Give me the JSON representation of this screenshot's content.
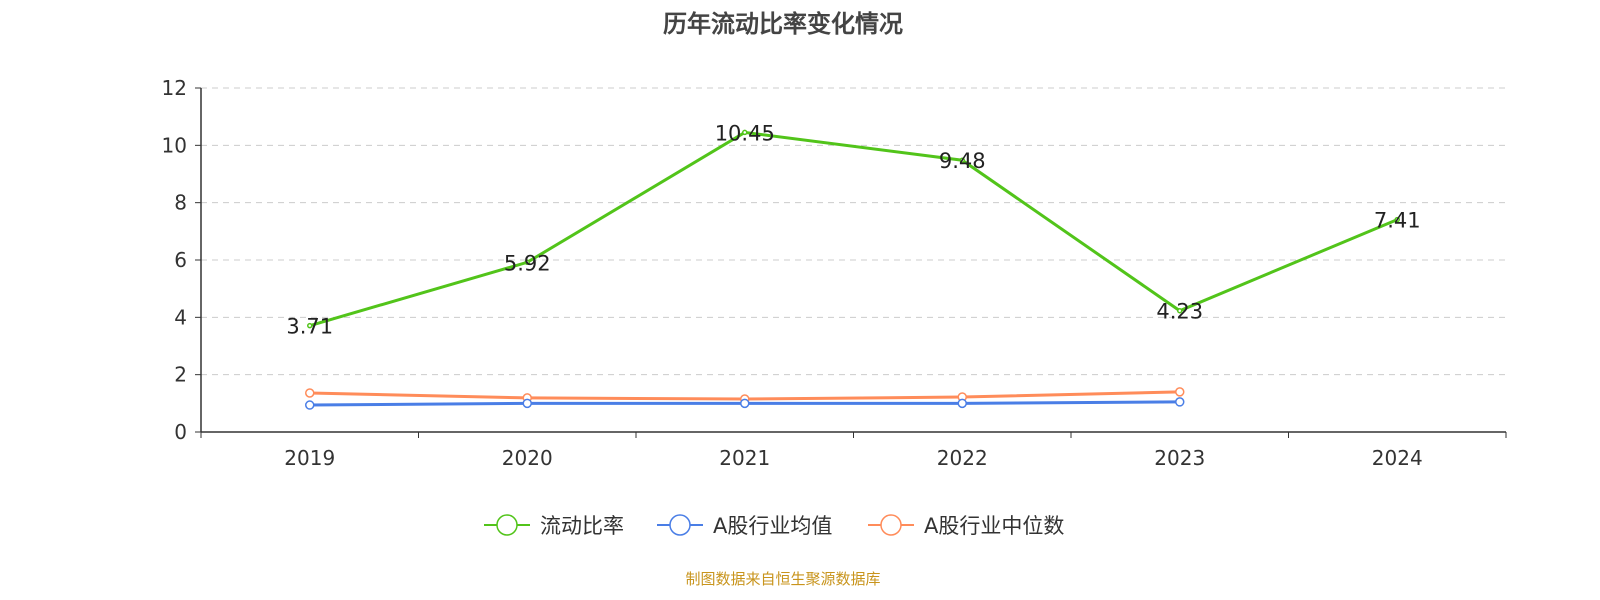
{
  "chart_data": {
    "type": "line",
    "title": "历年流动比率变化情况",
    "categories": [
      "2019",
      "2020",
      "2021",
      "2022",
      "2023",
      "2024"
    ],
    "ylim": [
      0,
      12
    ],
    "yticks": [
      0,
      2,
      4,
      6,
      8,
      10,
      12
    ],
    "grid": true,
    "legend_position": "bottom",
    "series": [
      {
        "name": "流动比率",
        "color": "#52c41a",
        "values": [
          3.71,
          5.92,
          10.45,
          9.48,
          4.23,
          7.41
        ],
        "labels": true
      },
      {
        "name": "A股行业均值",
        "color": "#4a7ee6",
        "values": [
          0.94,
          1.0,
          1.0,
          1.0,
          1.05,
          null
        ],
        "labels": false
      },
      {
        "name": "A股行业中位数",
        "color": "#ff8c5a",
        "values": [
          1.36,
          1.19,
          1.15,
          1.22,
          1.4,
          null
        ],
        "labels": false
      }
    ],
    "source": "制图数据来自恒生聚源数据库"
  }
}
